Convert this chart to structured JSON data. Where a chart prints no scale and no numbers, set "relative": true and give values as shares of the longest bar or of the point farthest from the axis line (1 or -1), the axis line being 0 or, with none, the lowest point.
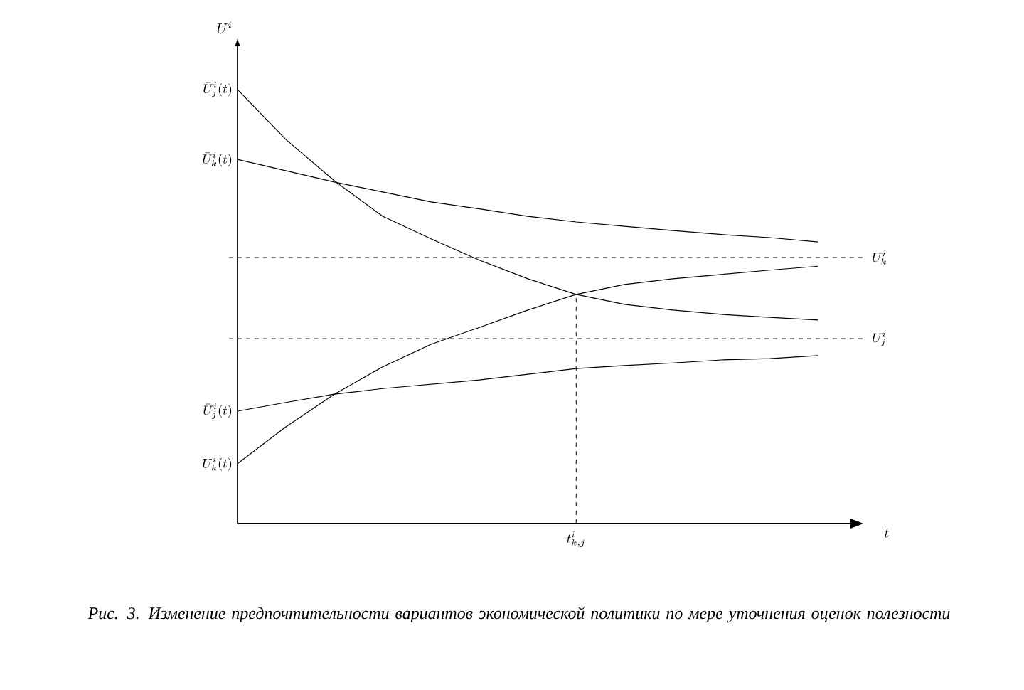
{
  "chart_data": {
    "type": "line",
    "relative": true,
    "line_style": "solid",
    "title": "Рис. 3. Изменение предпочтительности вариантов экономической политики по мере уточнения оценок полезности",
    "xlabel": "t",
    "ylabel": "U^{i}",
    "categories": [
      null,
      null,
      null,
      null,
      null,
      null,
      null,
      null,
      null,
      null,
      null,
      null,
      null
    ],
    "series": [
      {
        "name": "\\bar{U}^{i}_{j}(t)",
        "color": "#000000",
        "values": [
          1,
          0.885,
          0.79,
          0.708,
          0.656,
          0.607,
          0.564,
          0.528,
          0.505,
          0.492,
          0.482,
          0.475,
          0.469
        ]
      },
      {
        "name": "\\bar{U}^{i}_{k}(t)",
        "color": "#000000",
        "values": [
          0.839,
          0.813,
          0.787,
          0.764,
          0.741,
          0.725,
          0.708,
          0.695,
          0.685,
          0.675,
          0.666,
          0.659,
          0.649
        ]
      },
      {
        "name": "\\bar{U}^{i}_{j}(t)",
        "color": "#000000",
        "values": [
          0.259,
          0.279,
          0.298,
          0.311,
          0.321,
          0.331,
          0.344,
          0.357,
          0.364,
          0.37,
          0.377,
          0.38,
          0.387
        ]
      },
      {
        "name": "\\bar{U}^{i}_{k}(t)",
        "color": "#000000",
        "values": [
          0.138,
          0.223,
          0.298,
          0.361,
          0.413,
          0.452,
          0.492,
          0.528,
          0.551,
          0.564,
          0.574,
          0.584,
          0.593
        ]
      }
    ],
    "ref_lines": [
      {
        "axis": "y",
        "value": 0.613,
        "label": "U^{i}_{k}",
        "line_style": "dashed"
      },
      {
        "axis": "y",
        "value": 0.426,
        "label": "U^{i}_{j}",
        "line_style": "dashed"
      }
    ],
    "annotations": [
      "t^{i}_{k,j}"
    ]
  }
}
